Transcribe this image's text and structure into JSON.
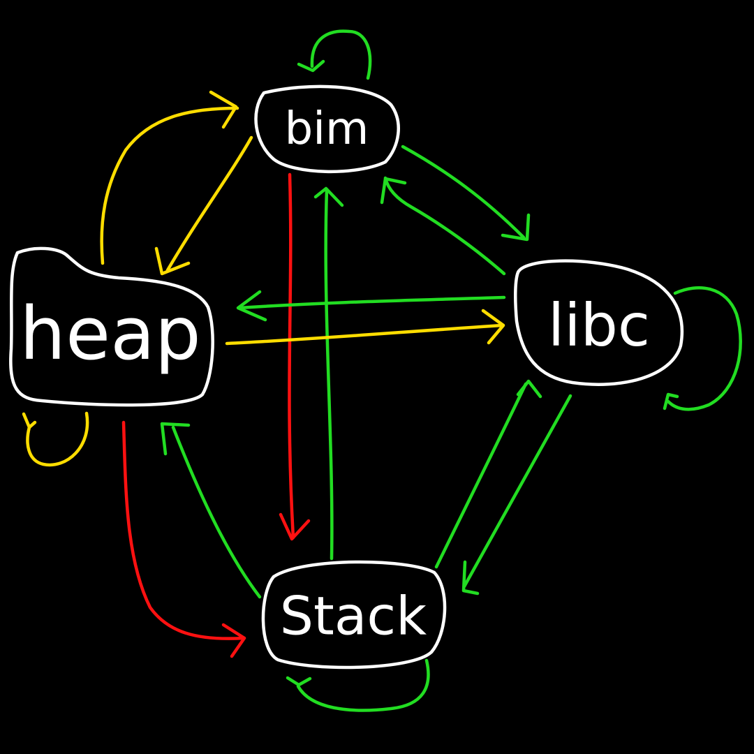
{
  "nodes": [
    {
      "id": "bim",
      "label": "bim"
    },
    {
      "id": "heap",
      "label": "heap"
    },
    {
      "id": "libc",
      "label": "libc"
    },
    {
      "id": "stack",
      "label": "Stack"
    }
  ],
  "edges": [
    {
      "id": "bim-self",
      "from": "bim",
      "to": "bim",
      "color": "#22dd22"
    },
    {
      "id": "heap-to-bim",
      "from": "heap",
      "to": "bim",
      "color": "#ffdd00"
    },
    {
      "id": "bim-to-heap",
      "from": "bim",
      "to": "heap",
      "color": "#ffdd00"
    },
    {
      "id": "bim-to-stack",
      "from": "bim",
      "to": "stack",
      "color": "#ff1111"
    },
    {
      "id": "stack-to-bim",
      "from": "stack",
      "to": "bim",
      "color": "#22dd22"
    },
    {
      "id": "bim-to-libc",
      "from": "bim",
      "to": "libc",
      "color": "#22dd22"
    },
    {
      "id": "libc-to-bim",
      "from": "libc",
      "to": "bim",
      "color": "#22dd22"
    },
    {
      "id": "libc-to-heap",
      "from": "libc",
      "to": "heap",
      "color": "#22dd22"
    },
    {
      "id": "heap-to-libc",
      "from": "heap",
      "to": "libc",
      "color": "#ffdd00"
    },
    {
      "id": "libc-self",
      "from": "libc",
      "to": "libc",
      "color": "#22dd22"
    },
    {
      "id": "heap-self",
      "from": "heap",
      "to": "heap",
      "color": "#ffdd00"
    },
    {
      "id": "heap-to-stack",
      "from": "heap",
      "to": "stack",
      "color": "#ff1111"
    },
    {
      "id": "stack-to-heap",
      "from": "stack",
      "to": "heap",
      "color": "#22dd22"
    },
    {
      "id": "stack-to-libc",
      "from": "stack",
      "to": "libc",
      "color": "#22dd22"
    },
    {
      "id": "libc-to-stack",
      "from": "libc",
      "to": "stack",
      "color": "#22dd22"
    },
    {
      "id": "stack-self",
      "from": "stack",
      "to": "stack",
      "color": "#22dd22"
    }
  ]
}
